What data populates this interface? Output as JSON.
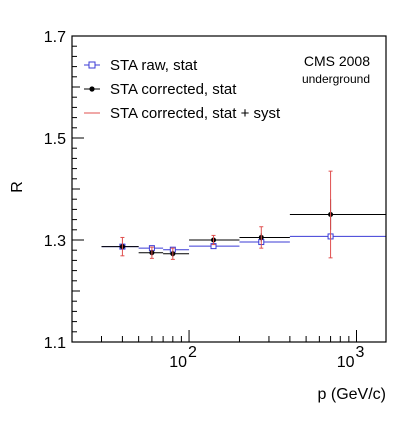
{
  "chart_data": {
    "type": "scatter",
    "title": "",
    "xlabel": "p  (GeV/c)",
    "ylabel": "R",
    "xscale": "log",
    "xlim": [
      20,
      1500
    ],
    "ylim": [
      1.1,
      1.7
    ],
    "y_tick_values": [
      1.1,
      1.3,
      1.5,
      1.7
    ],
    "y_tick_labels": [
      "1.1",
      "1.3",
      "1.5",
      "1.7"
    ],
    "x_tick_labels": [
      {
        "base": "10",
        "exp": "2",
        "value": 100
      },
      {
        "base": "10",
        "exp": "3",
        "value": 1000
      }
    ],
    "grid": false,
    "legend_position": "top-left",
    "annotations": {
      "main": "CMS 2008",
      "sub": "underground"
    },
    "series": [
      {
        "name": "STA raw, stat",
        "color": "#3b3bd6",
        "marker": "open-square",
        "points": [
          {
            "x": 40,
            "y": 1.287,
            "xlo": 30,
            "xhi": 50,
            "yerr": 0.003
          },
          {
            "x": 60,
            "y": 1.284,
            "xlo": 50,
            "xhi": 70,
            "yerr": 0.003
          },
          {
            "x": 80,
            "y": 1.281,
            "xlo": 70,
            "xhi": 100,
            "yerr": 0.003
          },
          {
            "x": 140,
            "y": 1.288,
            "xlo": 100,
            "xhi": 200,
            "yerr": 0.003
          },
          {
            "x": 270,
            "y": 1.296,
            "xlo": 200,
            "xhi": 400,
            "yerr": 0.004
          },
          {
            "x": 700,
            "y": 1.307,
            "xlo": 400,
            "xhi": 1500,
            "yerr": 0.006
          }
        ]
      },
      {
        "name": "STA corrected, stat",
        "color": "#000000",
        "marker": "filled-circle",
        "points": [
          {
            "x": 40,
            "y": 1.287,
            "xlo": 30,
            "xhi": 50,
            "yerr": 0.006
          },
          {
            "x": 60,
            "y": 1.275,
            "xlo": 50,
            "xhi": 70,
            "yerr": 0.006
          },
          {
            "x": 80,
            "y": 1.273,
            "xlo": 70,
            "xhi": 100,
            "yerr": 0.006
          },
          {
            "x": 140,
            "y": 1.3,
            "xlo": 100,
            "xhi": 200,
            "yerr": 0.005
          },
          {
            "x": 270,
            "y": 1.305,
            "xlo": 200,
            "xhi": 400,
            "yerr": 0.008
          },
          {
            "x": 700,
            "y": 1.35,
            "xlo": 400,
            "xhi": 1500,
            "yerr": 0.03
          }
        ]
      },
      {
        "name": "STA corrected, stat + syst",
        "color": "#e0504f",
        "marker": "none",
        "points": [
          {
            "x": 40,
            "y": 1.287,
            "yerr": 0.018
          },
          {
            "x": 60,
            "y": 1.275,
            "yerr": 0.011
          },
          {
            "x": 80,
            "y": 1.273,
            "yerr": 0.011
          },
          {
            "x": 140,
            "y": 1.3,
            "yerr": 0.009
          },
          {
            "x": 270,
            "y": 1.305,
            "yerr": 0.021
          },
          {
            "x": 700,
            "y": 1.35,
            "yerr": 0.085
          }
        ]
      }
    ]
  }
}
